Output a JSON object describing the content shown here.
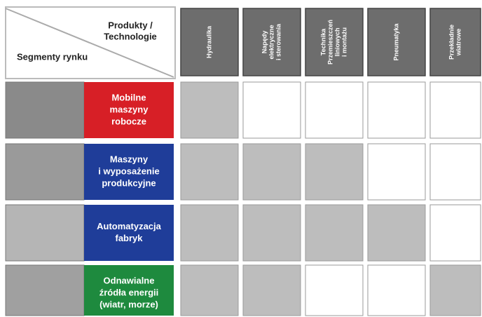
{
  "header": {
    "products_label": [
      "Produkty /",
      "Technologie"
    ],
    "segments_label": "Segmenty rynku"
  },
  "columns": [
    {
      "lines": [
        "Hydraulika"
      ]
    },
    {
      "lines": [
        "Napędy",
        "elektryczne",
        "i sterowania"
      ]
    },
    {
      "lines": [
        "Technika",
        "Przemieszczeń",
        "liniowych",
        "i montażu"
      ]
    },
    {
      "lines": [
        "Pneumatyka"
      ]
    },
    {
      "lines": [
        "Przekładnie",
        "wiatrowe"
      ]
    }
  ],
  "rows": [
    {
      "lines": [
        "Mobilne",
        "maszyny",
        "robocze"
      ],
      "color": "#d71f26",
      "cells": [
        true,
        false,
        false,
        false,
        false
      ]
    },
    {
      "lines": [
        "Maszyny",
        "i wyposażenie",
        "produkcyjne"
      ],
      "color": "#1f3d99",
      "cells": [
        true,
        true,
        true,
        false,
        false
      ]
    },
    {
      "lines": [
        "Automatyzacja",
        "fabryk"
      ],
      "color": "#1f3d99",
      "cells": [
        true,
        true,
        true,
        true,
        false
      ]
    },
    {
      "lines": [
        "Odnawialne",
        "źródła energii",
        "(wiatr, morze)"
      ],
      "color": "#1e8a3e",
      "cells": [
        true,
        true,
        false,
        false,
        true
      ]
    }
  ]
}
